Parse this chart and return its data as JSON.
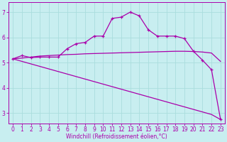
{
  "xlabel": "Windchill (Refroidissement éolien,°C)",
  "background_color": "#c8eef0",
  "grid_color": "#aadddd",
  "line_color": "#aa00aa",
  "xlim": [
    -0.5,
    23.5
  ],
  "ylim": [
    2.6,
    7.4
  ],
  "yticks": [
    3,
    4,
    5,
    6,
    7
  ],
  "xticks": [
    0,
    1,
    2,
    3,
    4,
    5,
    6,
    7,
    8,
    9,
    10,
    11,
    12,
    13,
    14,
    15,
    16,
    17,
    18,
    19,
    20,
    21,
    22,
    23
  ],
  "curve1_x": [
    0,
    1,
    2,
    3,
    4,
    5,
    6,
    7,
    8,
    9,
    10,
    11,
    12,
    13,
    14,
    15,
    16,
    17,
    18,
    19,
    20,
    21,
    22,
    23
  ],
  "curve1_y": [
    5.15,
    5.28,
    5.2,
    5.22,
    5.22,
    5.22,
    5.55,
    5.75,
    5.8,
    6.05,
    6.05,
    6.75,
    6.8,
    7.0,
    6.85,
    6.3,
    6.05,
    6.05,
    6.05,
    5.95,
    5.45,
    5.1,
    4.72,
    2.75
  ],
  "curve2_x": [
    0,
    1,
    2,
    3,
    4,
    5,
    6,
    7,
    8,
    9,
    10,
    11,
    12,
    13,
    14,
    15,
    16,
    17,
    18,
    19,
    20,
    21,
    22,
    23
  ],
  "curve2_y": [
    5.15,
    5.18,
    5.22,
    5.26,
    5.28,
    5.3,
    5.32,
    5.33,
    5.35,
    5.36,
    5.37,
    5.38,
    5.39,
    5.4,
    5.41,
    5.42,
    5.43,
    5.44,
    5.45,
    5.45,
    5.44,
    5.42,
    5.38,
    5.05
  ],
  "curve3_x": [
    0,
    1,
    2,
    3,
    4,
    5,
    6,
    7,
    8,
    9,
    10,
    11,
    12,
    13,
    14,
    15,
    16,
    17,
    18,
    19,
    20,
    21,
    22,
    23
  ],
  "curve3_y": [
    5.15,
    5.05,
    4.95,
    4.85,
    4.75,
    4.65,
    4.55,
    4.45,
    4.35,
    4.25,
    4.15,
    4.05,
    3.95,
    3.85,
    3.75,
    3.65,
    3.55,
    3.45,
    3.35,
    3.25,
    3.15,
    3.05,
    2.95,
    2.75
  ]
}
